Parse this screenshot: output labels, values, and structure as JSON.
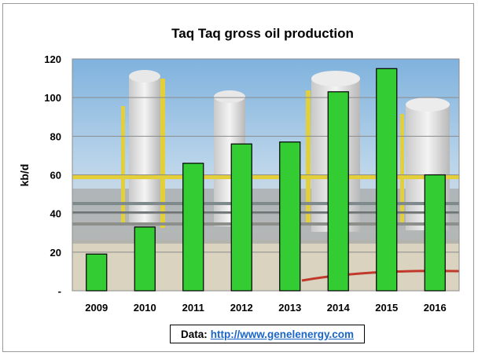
{
  "chart_data": {
    "type": "bar",
    "title": "Taq Taq gross oil production",
    "xlabel": "",
    "ylabel": "kb/d",
    "categories": [
      "2009",
      "2010",
      "2011",
      "2012",
      "2013",
      "2014",
      "2015",
      "2016"
    ],
    "values": [
      19,
      33,
      66,
      76,
      77,
      103,
      115,
      60
    ],
    "ylim": [
      0,
      120
    ],
    "yticks": [
      0,
      20,
      40,
      60,
      80,
      100,
      120
    ],
    "ytick_labels": [
      "-",
      "20",
      "40",
      "60",
      "80",
      "100",
      "120"
    ],
    "grid": true,
    "legend": "none",
    "colors": {
      "bar_fill": "#33cc33",
      "bar_stroke": "#000000",
      "grid": "#8c8c8c"
    },
    "background_image": "oil-refinery-photo"
  },
  "source": {
    "label": "Data:",
    "link_text": "http://www.genelenergy.com"
  }
}
